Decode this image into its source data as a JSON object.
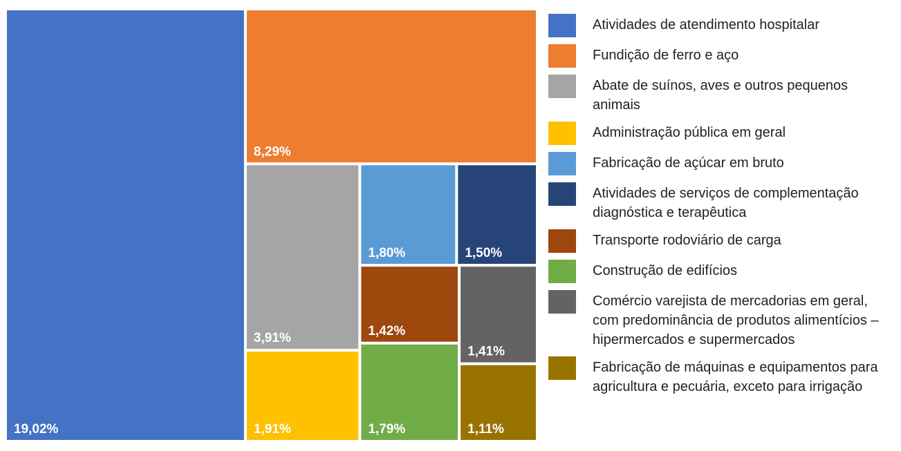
{
  "chart_data": {
    "type": "treemap",
    "categories": [
      "Atividades de atendimento hospitalar",
      "Fundição de ferro e aço",
      "Abate de suínos, aves e outros pequenos animais",
      "Administração pública em geral",
      "Fabricação de açúcar em bruto",
      "Atividades de serviços de complementação diagnóstica e terapêutica",
      "Transporte rodoviário de carga",
      "Construção de edifícios",
      "Comércio varejista de mercadorias em geral, com predominância de produtos alimentícios – hipermercados e supermercados",
      "Fabricação de máquinas e equipamentos para agricultura e pecuária, exceto para irrigação"
    ],
    "values": [
      19.02,
      8.29,
      3.91,
      1.91,
      1.8,
      1.5,
      1.42,
      1.79,
      1.41,
      1.11
    ],
    "value_labels": [
      "19,02%",
      "8,29%",
      "3,91%",
      "1,91%",
      "1,80%",
      "1,50%",
      "1,42%",
      "1,79%",
      "1,41%",
      "1,11%"
    ],
    "colors": [
      "#4472c4",
      "#ed7d31",
      "#a5a5a5",
      "#ffc000",
      "#5b9bd5",
      "#264478",
      "#9e480e",
      "#70ad47",
      "#636363",
      "#997300"
    ]
  }
}
